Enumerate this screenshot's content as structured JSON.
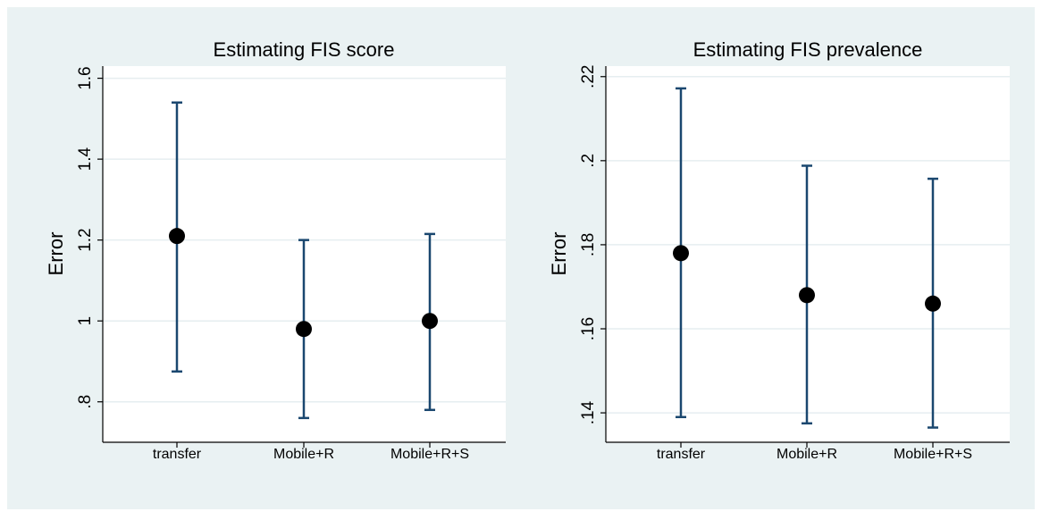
{
  "colors": {
    "outer_background": "#eaf2f3",
    "plot_background": "#ffffff",
    "gridline": "#e6eef0",
    "error_bar": "#1a476f",
    "marker": "#000000"
  },
  "chart_data": [
    {
      "type": "scatter",
      "title": "Estimating FIS score",
      "xlabel": "",
      "ylabel": "Error",
      "categories": [
        "transfer",
        "Mobile+R",
        "Mobile+R+S"
      ],
      "values": [
        1.21,
        0.98,
        1.0
      ],
      "lower": [
        0.875,
        0.76,
        0.78
      ],
      "upper": [
        1.54,
        1.2,
        1.215
      ],
      "ylim": [
        0.7,
        1.63
      ],
      "yticks": [
        0.8,
        1.0,
        1.2,
        1.4,
        1.6
      ],
      "yticklabels": [
        ".8",
        "1",
        "1.2",
        "1.4",
        "1.6"
      ],
      "grid": true,
      "error_bars": true
    },
    {
      "type": "scatter",
      "title": "Estimating FIS prevalence",
      "xlabel": "",
      "ylabel": "Error",
      "categories": [
        "transfer",
        "Mobile+R",
        "Mobile+R+S"
      ],
      "values": [
        0.178,
        0.168,
        0.166
      ],
      "lower": [
        0.139,
        0.1375,
        0.1365
      ],
      "upper": [
        0.2172,
        0.1988,
        0.1957
      ],
      "ylim": [
        0.133,
        0.2225
      ],
      "yticks": [
        0.14,
        0.16,
        0.18,
        0.2,
        0.22
      ],
      "yticklabels": [
        ".14",
        ".16",
        ".18",
        ".2",
        ".22"
      ],
      "grid": true,
      "error_bars": true
    }
  ]
}
